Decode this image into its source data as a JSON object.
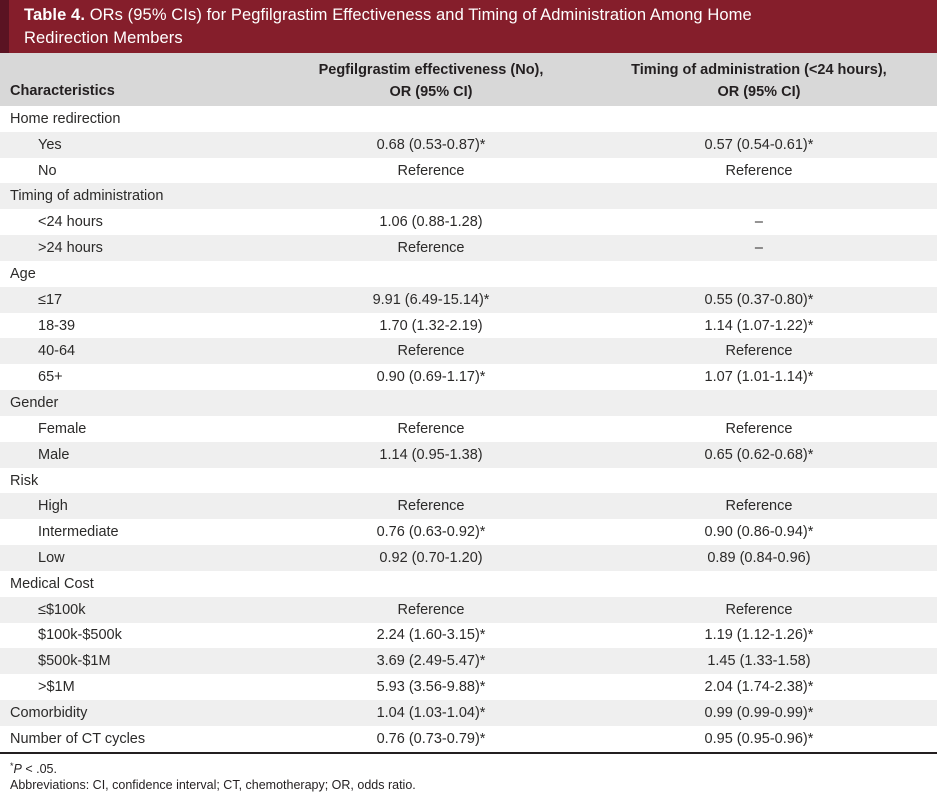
{
  "colors": {
    "title_bar": "#851e2b",
    "title_bar_strip": "#5a1322",
    "title_text": "#ffffff",
    "header_bg": "#d8d8d8",
    "row_alt_bg": "#efefef",
    "text": "#2b2a29",
    "rule": "#231f20"
  },
  "table": {
    "title": {
      "prefix": "Table 4.",
      "line1_rest": " ORs (95% CIs) for Pegfilgrastim Effectiveness and Timing of Administration Among Home",
      "line2": "Redirection Members"
    },
    "columns": {
      "characteristics": "Characteristics",
      "effectiveness_line1": "Pegfilgrastim effectiveness (No),",
      "effectiveness_line2": "OR (95% CI)",
      "timing_line1": "Timing of administration (<24 hours),",
      "timing_line2": "OR (95% CI)"
    },
    "rows": [
      {
        "label": "Home redirection",
        "indent": false,
        "effectiveness": "",
        "timing": ""
      },
      {
        "label": "Yes",
        "indent": true,
        "effectiveness": "0.68 (0.53-0.87)*",
        "timing": "0.57 (0.54-0.61)*"
      },
      {
        "label": "No",
        "indent": true,
        "effectiveness": "Reference",
        "timing": "Reference"
      },
      {
        "label": "Timing of administration",
        "indent": false,
        "effectiveness": "",
        "timing": ""
      },
      {
        "label": "<24 hours",
        "indent": true,
        "effectiveness": "1.06 (0.88-1.28)",
        "timing": "–"
      },
      {
        "label": ">24 hours",
        "indent": true,
        "effectiveness": "Reference",
        "timing": "–"
      },
      {
        "label": "Age",
        "indent": false,
        "effectiveness": "",
        "timing": ""
      },
      {
        "label": "≤17",
        "indent": true,
        "effectiveness": "9.91 (6.49-15.14)*",
        "timing": "0.55 (0.37-0.80)*"
      },
      {
        "label": "18-39",
        "indent": true,
        "effectiveness": "1.70 (1.32-2.19)",
        "timing": "1.14 (1.07-1.22)*"
      },
      {
        "label": "40-64",
        "indent": true,
        "effectiveness": "Reference",
        "timing": "Reference"
      },
      {
        "label": "65+",
        "indent": true,
        "effectiveness": "0.90 (0.69-1.17)*",
        "timing": "1.07 (1.01-1.14)*"
      },
      {
        "label": "Gender",
        "indent": false,
        "effectiveness": "",
        "timing": ""
      },
      {
        "label": "Female",
        "indent": true,
        "effectiveness": "Reference",
        "timing": "Reference"
      },
      {
        "label": "Male",
        "indent": true,
        "effectiveness": "1.14 (0.95-1.38)",
        "timing": "0.65 (0.62-0.68)*"
      },
      {
        "label": "Risk",
        "indent": false,
        "effectiveness": "",
        "timing": ""
      },
      {
        "label": "High",
        "indent": true,
        "effectiveness": "Reference",
        "timing": "Reference"
      },
      {
        "label": "Intermediate",
        "indent": true,
        "effectiveness": "0.76 (0.63-0.92)*",
        "timing": "0.90 (0.86-0.94)*"
      },
      {
        "label": "Low",
        "indent": true,
        "effectiveness": "0.92 (0.70-1.20)",
        "timing": "0.89 (0.84-0.96)"
      },
      {
        "label": "Medical Cost",
        "indent": false,
        "effectiveness": "",
        "timing": ""
      },
      {
        "label": "≤$100k",
        "indent": true,
        "effectiveness": "Reference",
        "timing": "Reference"
      },
      {
        "label": "$100k-$500k",
        "indent": true,
        "effectiveness": "2.24 (1.60-3.15)*",
        "timing": "1.19 (1.12-1.26)*"
      },
      {
        "label": "$500k-$1M",
        "indent": true,
        "effectiveness": "3.69 (2.49-5.47)*",
        "timing": "1.45 (1.33-1.58)"
      },
      {
        "label": ">$1M",
        "indent": true,
        "effectiveness": "5.93 (3.56-9.88)*",
        "timing": "2.04 (1.74-2.38)*"
      },
      {
        "label": "Comorbidity",
        "indent": false,
        "effectiveness": "1.04 (1.03-1.04)*",
        "timing": "0.99 (0.99-0.99)*"
      },
      {
        "label": "Number of CT cycles",
        "indent": false,
        "effectiveness": "0.76 (0.73-0.79)*",
        "timing": "0.95 (0.95-0.96)*"
      }
    ],
    "footnotes": {
      "sig_star": "*",
      "sig_p": "P",
      "sig_rest": " < .05.",
      "abbreviations": "Abbreviations: CI, confidence interval; CT, chemotherapy; OR, odds ratio."
    }
  }
}
